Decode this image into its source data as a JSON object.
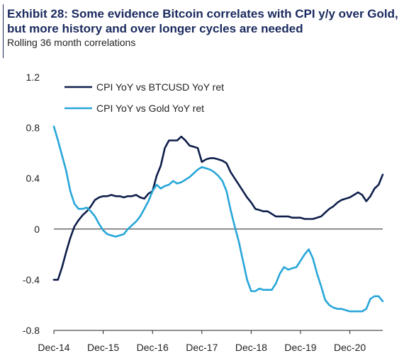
{
  "header": {
    "title": "Exhibit 28: Some evidence Bitcoin correlates with CPI y/y over Gold, but  more history and over longer cycles are needed",
    "subtitle": "Rolling 36 month correlations"
  },
  "chart_data": {
    "type": "line",
    "title": "Exhibit 28: Some evidence Bitcoin correlates with CPI y/y over Gold, but  more history and over longer cycles are needed",
    "subtitle": "Rolling 36 month correlations",
    "xlabel": "",
    "ylabel": "",
    "ylim": [
      -0.8,
      1.2
    ],
    "yticks": [
      1.2,
      0.8,
      0.4,
      0,
      -0.4,
      -0.8
    ],
    "ytick_labels": [
      "1.2",
      "0.8",
      "0.4",
      "0",
      "-0.4",
      "-0.8"
    ],
    "xlim": [
      0,
      80
    ],
    "xticks": [
      0,
      12,
      24,
      36,
      48,
      60,
      72
    ],
    "xtick_labels": [
      "Dec-14",
      "Dec-15",
      "Dec-16",
      "Dec-17",
      "Dec-18",
      "Dec-19",
      "Dec-20"
    ],
    "x_unit": "months since Dec-14",
    "legend_position": "top-center",
    "grid": false,
    "series": [
      {
        "name": "CPI YoY vs BTCUSD YoY ret",
        "color": "#0f1f4b",
        "x": [
          0,
          1,
          2,
          3,
          4,
          5,
          6,
          7,
          8,
          9,
          10,
          11,
          12,
          13,
          14,
          15,
          16,
          17,
          18,
          19,
          20,
          21,
          22,
          23,
          24,
          25,
          26,
          27,
          28,
          29,
          30,
          31,
          32,
          33,
          34,
          35,
          36,
          37,
          38,
          39,
          40,
          41,
          42,
          43,
          44,
          45,
          46,
          47,
          48,
          49,
          50,
          51,
          52,
          53,
          54,
          55,
          56,
          57,
          58,
          59,
          60,
          61,
          62,
          63,
          64,
          65,
          66,
          67,
          68,
          69,
          70,
          71,
          72,
          73,
          74,
          75,
          76,
          77,
          78,
          79,
          80
        ],
        "values": [
          -0.4,
          -0.4,
          -0.3,
          -0.18,
          -0.07,
          0.02,
          0.07,
          0.11,
          0.14,
          0.18,
          0.23,
          0.25,
          0.26,
          0.26,
          0.27,
          0.26,
          0.26,
          0.25,
          0.26,
          0.26,
          0.27,
          0.25,
          0.24,
          0.28,
          0.3,
          0.42,
          0.5,
          0.64,
          0.7,
          0.7,
          0.7,
          0.73,
          0.7,
          0.66,
          0.65,
          0.64,
          0.53,
          0.55,
          0.56,
          0.56,
          0.55,
          0.54,
          0.52,
          0.45,
          0.4,
          0.35,
          0.3,
          0.25,
          0.21,
          0.16,
          0.15,
          0.14,
          0.14,
          0.12,
          0.1,
          0.1,
          0.1,
          0.1,
          0.09,
          0.09,
          0.09,
          0.08,
          0.08,
          0.08,
          0.09,
          0.1,
          0.13,
          0.16,
          0.18,
          0.21,
          0.23,
          0.24,
          0.25,
          0.27,
          0.29,
          0.27,
          0.22,
          0.26,
          0.32,
          0.35,
          0.43
        ]
      },
      {
        "name": "CPI YoY vs Gold YoY ret",
        "color": "#27a6d9",
        "x": [
          0,
          1,
          2,
          3,
          4,
          5,
          6,
          7,
          8,
          9,
          10,
          11,
          12,
          13,
          14,
          15,
          16,
          17,
          18,
          19,
          20,
          21,
          22,
          23,
          24,
          25,
          26,
          27,
          28,
          29,
          30,
          31,
          32,
          33,
          34,
          35,
          36,
          37,
          38,
          39,
          40,
          41,
          42,
          43,
          44,
          45,
          46,
          47,
          48,
          49,
          50,
          51,
          52,
          53,
          54,
          55,
          56,
          57,
          58,
          59,
          60,
          61,
          62,
          63,
          64,
          65,
          66,
          67,
          68,
          69,
          70,
          71,
          72,
          73,
          74,
          75,
          76,
          77,
          78,
          79,
          80
        ],
        "values": [
          0.81,
          0.7,
          0.58,
          0.46,
          0.3,
          0.2,
          0.16,
          0.16,
          0.17,
          0.14,
          0.1,
          0.04,
          -0.01,
          -0.04,
          -0.05,
          -0.06,
          -0.05,
          -0.04,
          0.0,
          0.03,
          0.06,
          0.1,
          0.16,
          0.22,
          0.3,
          0.35,
          0.32,
          0.34,
          0.35,
          0.38,
          0.36,
          0.37,
          0.39,
          0.41,
          0.44,
          0.47,
          0.49,
          0.48,
          0.47,
          0.45,
          0.42,
          0.38,
          0.3,
          0.15,
          0.02,
          -0.1,
          -0.25,
          -0.4,
          -0.49,
          -0.49,
          -0.47,
          -0.48,
          -0.48,
          -0.48,
          -0.43,
          -0.35,
          -0.3,
          -0.32,
          -0.31,
          -0.3,
          -0.25,
          -0.2,
          -0.16,
          -0.23,
          -0.35,
          -0.45,
          -0.56,
          -0.6,
          -0.62,
          -0.63,
          -0.63,
          -0.64,
          -0.65,
          -0.65,
          -0.65,
          -0.65,
          -0.63,
          -0.55,
          -0.53,
          -0.53,
          -0.57
        ]
      }
    ]
  }
}
